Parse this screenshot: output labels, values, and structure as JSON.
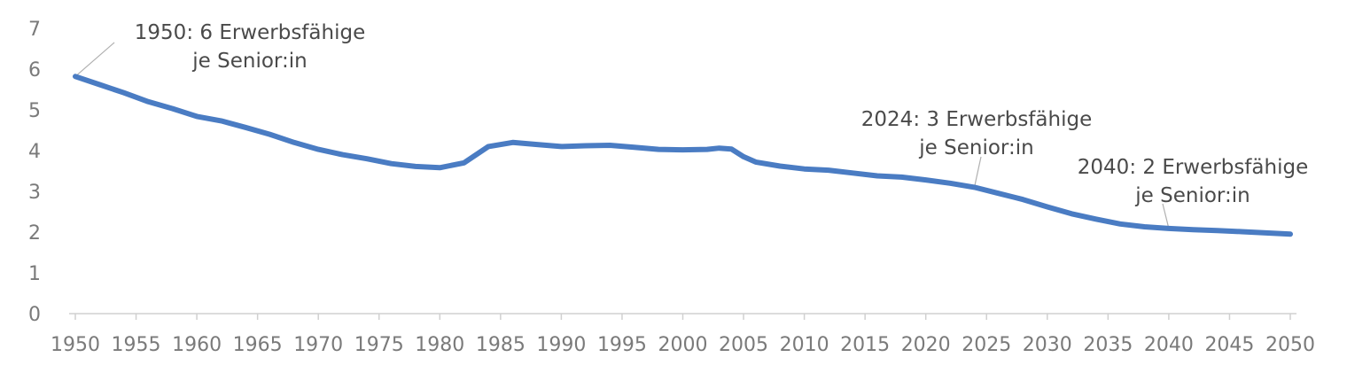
{
  "chart_data": {
    "type": "line",
    "xlim": [
      1950,
      2050
    ],
    "ylim": [
      0,
      7
    ],
    "x_ticks": [
      1950,
      1955,
      1960,
      1965,
      1970,
      1975,
      1980,
      1985,
      1990,
      1995,
      2000,
      2005,
      2010,
      2015,
      2020,
      2025,
      2030,
      2035,
      2040,
      2045,
      2050
    ],
    "y_ticks": [
      0,
      1,
      2,
      3,
      4,
      5,
      6,
      7
    ],
    "grid": false,
    "legend": "none",
    "colors": {
      "line": "#4a7cc3",
      "axis": "#d0d0d0",
      "tick_text": "#7a7a7a",
      "annotation_text": "#4a4a4a",
      "leader": "#b0b0b0"
    },
    "series": [
      {
        "x": [
          1950,
          1952,
          1954,
          1956,
          1958,
          1960,
          1962,
          1964,
          1966,
          1968,
          1970,
          1972,
          1974,
          1976,
          1978,
          1980,
          1982,
          1984,
          1986,
          1988,
          1990,
          1992,
          1994,
          1996,
          1998,
          2000,
          2002,
          2003,
          2004,
          2005,
          2006,
          2008,
          2010,
          2012,
          2014,
          2016,
          2018,
          2020,
          2022,
          2024,
          2026,
          2028,
          2030,
          2032,
          2034,
          2036,
          2038,
          2040,
          2042,
          2044,
          2046,
          2048,
          2050
        ],
        "y": [
          5.82,
          5.62,
          5.42,
          5.2,
          5.03,
          4.84,
          4.73,
          4.57,
          4.4,
          4.2,
          4.03,
          3.9,
          3.8,
          3.68,
          3.61,
          3.58,
          3.7,
          4.1,
          4.2,
          4.15,
          4.1,
          4.12,
          4.13,
          4.08,
          4.03,
          4.02,
          4.03,
          4.06,
          4.04,
          3.85,
          3.72,
          3.62,
          3.55,
          3.52,
          3.45,
          3.38,
          3.35,
          3.28,
          3.2,
          3.1,
          2.95,
          2.8,
          2.62,
          2.45,
          2.32,
          2.2,
          2.13,
          2.09,
          2.06,
          2.04,
          2.01,
          1.98,
          1.95
        ]
      }
    ],
    "annotations": [
      {
        "lines": [
          "1950: 6 Erwerbsfähige",
          "je Senior:in"
        ],
        "point": [
          1950,
          5.82
        ]
      },
      {
        "lines": [
          "2024: 3 Erwerbsfähige",
          "je Senior:in"
        ],
        "point": [
          2024,
          3.1
        ]
      },
      {
        "lines": [
          "2040: 2 Erwerbsfähige",
          "je Senior:in"
        ],
        "point": [
          2040,
          2.09
        ]
      }
    ]
  }
}
